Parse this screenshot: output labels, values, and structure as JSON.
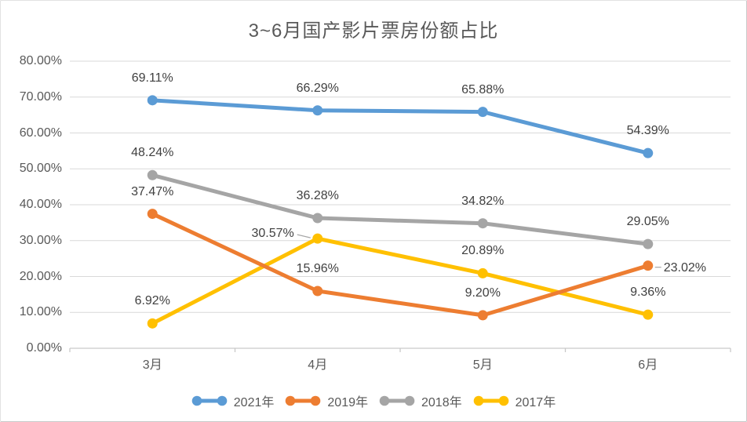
{
  "card": {
    "background": "#ffffff",
    "border_color": "#c9c9c9"
  },
  "styles": {
    "gridline_color": "#d9d9d9",
    "axis_line_color": "#c9c9c9",
    "leader_line_color": "#a6a6a6",
    "title_color": "#595959",
    "axis_text_color": "#595959",
    "data_label_color": "#404040"
  },
  "chart_data": {
    "type": "line",
    "title": "3~6月国产影片票房份额占比",
    "xlabel": "",
    "ylabel": "",
    "categories": [
      "3月",
      "4月",
      "5月",
      "6月"
    ],
    "ylim": [
      0,
      80
    ],
    "y_tick_step": 10,
    "grid": "horizontal",
    "legend_position": "bottom",
    "y_ticks": [
      {
        "label": "80.00%",
        "value": 80
      },
      {
        "label": "70.00%",
        "value": 70
      },
      {
        "label": "60.00%",
        "value": 60
      },
      {
        "label": "50.00%",
        "value": 50
      },
      {
        "label": "40.00%",
        "value": 40
      },
      {
        "label": "30.00%",
        "value": 30
      },
      {
        "label": "20.00%",
        "value": 20
      },
      {
        "label": "10.00%",
        "value": 10
      },
      {
        "label": "0.00%",
        "value": 0
      }
    ],
    "series": [
      {
        "name": "2021年",
        "color": "#5b9bd5",
        "values": [
          69.11,
          66.29,
          65.88,
          54.39
        ],
        "point_labels": [
          "69.11%",
          "66.29%",
          "65.88%",
          "54.39%"
        ],
        "label_positions": [
          "above",
          "above",
          "above",
          "above"
        ]
      },
      {
        "name": "2019年",
        "color": "#ed7d31",
        "values": [
          37.47,
          15.96,
          9.2,
          23.02
        ],
        "point_labels": [
          "37.47%",
          "15.96%",
          "9.20%",
          "23.02%"
        ],
        "label_positions": [
          "above",
          "above",
          "above",
          "right-leader"
        ]
      },
      {
        "name": "2018年",
        "color": "#a5a5a5",
        "values": [
          48.24,
          36.28,
          34.82,
          29.05
        ],
        "point_labels": [
          "48.24%",
          "36.28%",
          "34.82%",
          "29.05%"
        ],
        "label_positions": [
          "above",
          "above",
          "above",
          "above"
        ]
      },
      {
        "name": "2017年",
        "color": "#ffc000",
        "values": [
          6.92,
          30.57,
          20.89,
          9.36
        ],
        "point_labels": [
          "6.92%",
          "30.57%",
          "20.89%",
          "9.36%"
        ],
        "label_positions": [
          "above",
          "left-leader",
          "above",
          "above"
        ]
      }
    ]
  }
}
